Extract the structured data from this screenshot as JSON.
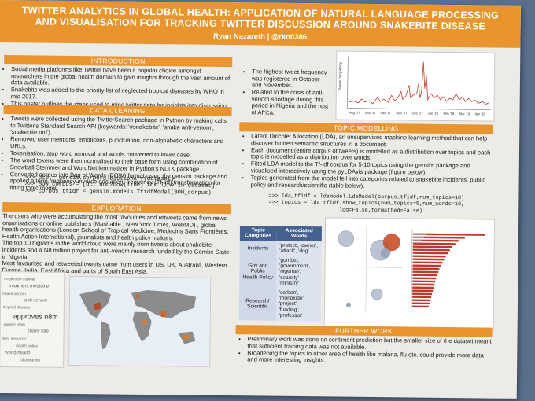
{
  "header": {
    "title_line1": "TWITTER ANALYTICS IN GLOBAL HEALTH: APPLICATION OF NATURAL LANGUAGE PROCESSING",
    "title_line2": "AND VISUALISATION FOR TRACKING TWITTER DISCUSSION AROUND SNAKEBITE DISEASE",
    "author": "Ryan Nazareth | @rkn0386"
  },
  "introduction": {
    "heading": "INTRODUCTION",
    "bullets": [
      "Social media platforms like Twitter have been a popular choice amongst researchers in the global health domain to gain insights through the vast amount of data available.",
      "Snakebite was added to the priority list of neglected tropical diseases by WHO in mid 2017.",
      "This poster outlines the steps used to mine twitter data for insights into discussion around snakebite, communicated through an interactive visualisation dashboard."
    ]
  },
  "data_cleaning": {
    "heading": "DATA CLEANING",
    "bullets": [
      "Tweets were collected using the TwitterSearch package in Python by making calls to Twitter's Standard Search API (keywords: '#snakebite', 'snake anti-venom', 'snakebite ntd').",
      "Removed user mentions, emoticons, punctuation, non-alphabetic characters and URLs.",
      "Tokenisation, stop word removal and words converted to lower case.",
      "The word tokens were then normalised to their base form using combination of Snowball Stemmer and WordNet lemmatizer in Python's NLTK package.",
      "Converted corpus into Bag of Words (BOW) format using the gensim package and applied a term frequency-inverse document frequency (Tf-idf) transformation for fitting topic model."
    ],
    "code": [
      ">>> dct = gensim.corpora.Dictionary(dataset)",
      ">>> BOW_corpus = [dct.doc2bow(line) for line in dataset]",
      ">>> corpus_tfidf = gensim.models.TfidfModel(BOW_corpus)"
    ]
  },
  "exploration": {
    "heading": "EXPLORATION",
    "paragraphs": [
      "The users who were accumulating the most favourites and retweets came from news organisations or online publishers (Mashable , New York Times, WebMD) , global health organisations (London School of Tropical Medicine, Médecins Sans Frontières, Health Action International), journalists and health policy makers.",
      "The top 10 bigrams in the world cloud were mainly from tweets about snakebite incidents and a N8 million project for anti-venom research funded by the Gombe State in Nigeria.",
      "Most favourited and retweeted tweets came from users in US, UK, Australia, Western Europe, India, East Africa and parts of South East Asia."
    ],
    "wordcloud": [
      "neglected tropical",
      "treatment medicine",
      "snake venom",
      "anti venom",
      "tropical disease",
      "approves n8m",
      "gombe state",
      "snake bite",
      "n8m research",
      "health policy",
      "world health",
      "disease list"
    ]
  },
  "timeseries": {
    "bullets": [
      "The highest tweet frequency was registered in October and November.",
      "Related to the crisis of anti-venom shortage during this period in Nigeria and the rest of Africa."
    ],
    "ylabel": "Tweet frequency",
    "ticks": [
      "Aug '17",
      "Sep '17",
      "Oct '17",
      "Nov '17",
      "Dec '17",
      "Jan '18",
      "Feb '18",
      "Mar '18",
      "Apr '18"
    ]
  },
  "topic_modelling": {
    "heading": "TOPIC MODELLING",
    "bullets": [
      "Latent Dirichlet Allocation (LDA), an unsupervised machine learning method that can help discover hidden semantic structures in a document.",
      "Each document (entire corpus of tweets) is modelled as a distribution over topics and each topic is modelled as a distribution over words.",
      "Fitted LDA model to the Tf-idf corpus for 5-10 topics using the gensim package and visualised interactively using the pyLDAvis package (figure below).",
      "Topics generated from the model fell into categories related to snakebite incidents, public policy and research/scientific (table below)."
    ],
    "code": [
      ">>> lda_tfidf = ldamodel.LdaModel(corpus_tfidf,num_topics=10)",
      ">>> topics = lda_tfidf.show_topics(num_topics=5,num_words=10,",
      "                      log=False,formatted=False)"
    ],
    "table": {
      "headers": [
        "Topic Categories",
        "Associated Words"
      ],
      "rows": [
        [
          "Incidents",
          "'protect', 'owner', 'attack', 'dog'"
        ],
        [
          "Gov and Public Health Policy",
          "'gombe', 'government', 'nigerian', 'scarcity' , 'ministry'"
        ],
        [
          "Research/ Scientific",
          "'carbon', 'monoxide', 'project', 'funding', 'professor'"
        ]
      ]
    }
  },
  "further_work": {
    "heading": "FURTHER WORK",
    "bullets": [
      "Preliminary work was done on sentiment prediction but the smaller size of the dataset meant that sufficient training data was not available.",
      "Broadening the topics to other area of health like malaria, flu etc. could provide more data and more interesting insights."
    ]
  },
  "colors": {
    "banner": "#e9952f",
    "table_header": "#44618f",
    "line": "#c0392b",
    "map_land": "#8c8c8c",
    "map_ocean": "#e8eef5"
  },
  "icons": [
    "world-map-image",
    "word-cloud-image",
    "time-series-chart-image",
    "ldavis-image"
  ]
}
